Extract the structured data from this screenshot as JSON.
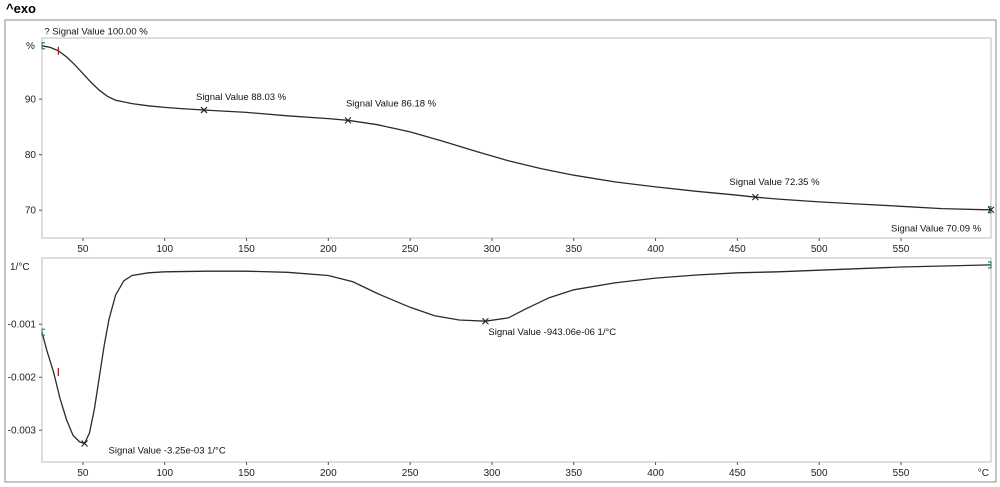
{
  "header": {
    "exo_label": "^exo"
  },
  "chart_data": [
    {
      "type": "line",
      "name": "top-panel",
      "ylabel": "%",
      "xunit": "",
      "xlim": [
        25,
        605
      ],
      "ylim": [
        65,
        101
      ],
      "xticks": [
        50,
        100,
        150,
        200,
        250,
        300,
        350,
        400,
        450,
        500,
        550
      ],
      "yticks": [
        70,
        80,
        90
      ],
      "x": [
        25,
        30,
        35,
        40,
        45,
        50,
        55,
        60,
        65,
        70,
        80,
        90,
        100,
        110,
        125,
        150,
        175,
        200,
        212,
        230,
        250,
        270,
        290,
        310,
        330,
        350,
        375,
        400,
        425,
        450,
        461,
        475,
        500,
        525,
        550,
        575,
        600,
        605
      ],
      "y": [
        99.6,
        99.3,
        98.7,
        97.6,
        96.2,
        94.6,
        93.0,
        91.6,
        90.5,
        89.8,
        89.2,
        88.8,
        88.5,
        88.3,
        88.03,
        87.6,
        87.0,
        86.5,
        86.18,
        85.4,
        84.1,
        82.4,
        80.6,
        78.9,
        77.5,
        76.3,
        75.1,
        74.2,
        73.4,
        72.7,
        72.35,
        72.0,
        71.5,
        71.1,
        70.7,
        70.3,
        70.1,
        70.09
      ],
      "annotations": [
        {
          "x": 35,
          "y": 100.0,
          "label": "? Signal Value   100.00 %"
        },
        {
          "x": 124,
          "y": 88.03,
          "label": "Signal Value   88.03 %"
        },
        {
          "x": 212,
          "y": 86.18,
          "label": "Signal Value   86.18 %"
        },
        {
          "x": 461,
          "y": 72.35,
          "label": "Signal Value   72.35 %"
        },
        {
          "x": 605,
          "y": 70.09,
          "label": "Signal Value   70.09 %"
        }
      ]
    },
    {
      "type": "line",
      "name": "bottom-panel",
      "ylabel": "1/°C",
      "xunit": "°C",
      "xlim": [
        25,
        605
      ],
      "ylim": [
        -0.0036,
        0.00025
      ],
      "xticks": [
        50,
        100,
        150,
        200,
        250,
        300,
        350,
        400,
        450,
        500,
        550
      ],
      "yticks": [
        -0.001,
        -0.002,
        -0.003
      ],
      "ytick_labels": [
        "-0.001",
        "-0.002",
        "-0.003"
      ],
      "x": [
        25,
        28,
        32,
        36,
        40,
        44,
        48,
        51,
        54,
        57,
        60,
        63,
        66,
        70,
        75,
        80,
        90,
        100,
        125,
        150,
        175,
        200,
        215,
        230,
        250,
        265,
        280,
        296,
        310,
        320,
        335,
        350,
        375,
        400,
        425,
        450,
        475,
        500,
        550,
        605
      ],
      "y": [
        -0.00115,
        -0.0015,
        -0.0019,
        -0.0024,
        -0.0028,
        -0.0031,
        -0.00322,
        -0.00325,
        -0.00305,
        -0.0026,
        -0.002,
        -0.0014,
        -0.0009,
        -0.00045,
        -0.00018,
        -8e-05,
        -3e-05,
        -1e-05,
        0.0,
        0.0,
        -2e-05,
        -8e-05,
        -0.0002,
        -0.00042,
        -0.00068,
        -0.00084,
        -0.00092,
        -0.000943,
        -0.00088,
        -0.00072,
        -0.0005,
        -0.00035,
        -0.00022,
        -0.00013,
        -7e-05,
        -3e-05,
        -1e-05,
        2e-05,
        8e-05,
        0.00012
      ],
      "annotations": [
        {
          "x": 51,
          "y": -0.00325,
          "label": "Signal Value   -3.25e-03 1/°C"
        },
        {
          "x": 296,
          "y": -0.000943,
          "label": "Signal Value   -943.06e-06 1/°C"
        }
      ]
    }
  ]
}
